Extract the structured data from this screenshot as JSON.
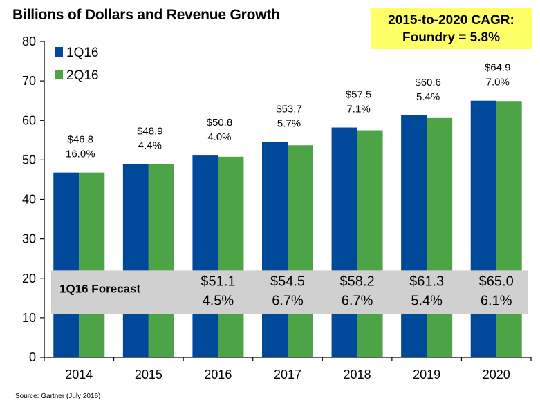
{
  "chart_data": {
    "type": "bar",
    "title": "Billions of Dollars and Revenue Growth",
    "categories": [
      "2014",
      "2015",
      "2016",
      "2017",
      "2018",
      "2019",
      "2020"
    ],
    "series": [
      {
        "name": "1Q16",
        "color": "#00489a",
        "values": [
          46.8,
          48.9,
          51.1,
          54.5,
          58.2,
          61.3,
          65.0
        ]
      },
      {
        "name": "2Q16",
        "color": "#4ca446",
        "values": [
          46.8,
          48.9,
          50.8,
          53.7,
          57.5,
          60.6,
          64.9
        ]
      }
    ],
    "ylim": [
      0,
      80
    ],
    "yticks": [
      0,
      10,
      20,
      30,
      40,
      50,
      60,
      70,
      80
    ],
    "legend": "top-left",
    "grid": false,
    "annotations_2q16": [
      {
        "value": "$46.8",
        "growth": "16.0%"
      },
      {
        "value": "$48.9",
        "growth": "4.4%"
      },
      {
        "value": "$50.8",
        "growth": "4.0%"
      },
      {
        "value": "$53.7",
        "growth": "5.7%"
      },
      {
        "value": "$57.5",
        "growth": "7.1%"
      },
      {
        "value": "$60.6",
        "growth": "5.4%"
      },
      {
        "value": "$64.9",
        "growth": "7.0%"
      }
    ],
    "forecast_band": {
      "label": "1Q16 Forecast",
      "color": "#d0d0d0",
      "range": [
        11,
        22
      ],
      "entries": [
        null,
        null,
        {
          "value": "$51.1",
          "growth": "4.5%"
        },
        {
          "value": "$54.5",
          "growth": "6.7%"
        },
        {
          "value": "$58.2",
          "growth": "6.7%"
        },
        {
          "value": "$61.3",
          "growth": "5.4%"
        },
        {
          "value": "$65.0",
          "growth": "6.1%"
        }
      ]
    }
  },
  "cagr_box": {
    "line1": "2015-to-2020 CAGR:",
    "line2": "Foundry = 5.8%"
  },
  "source": "Source: Gartner (July 2016)"
}
